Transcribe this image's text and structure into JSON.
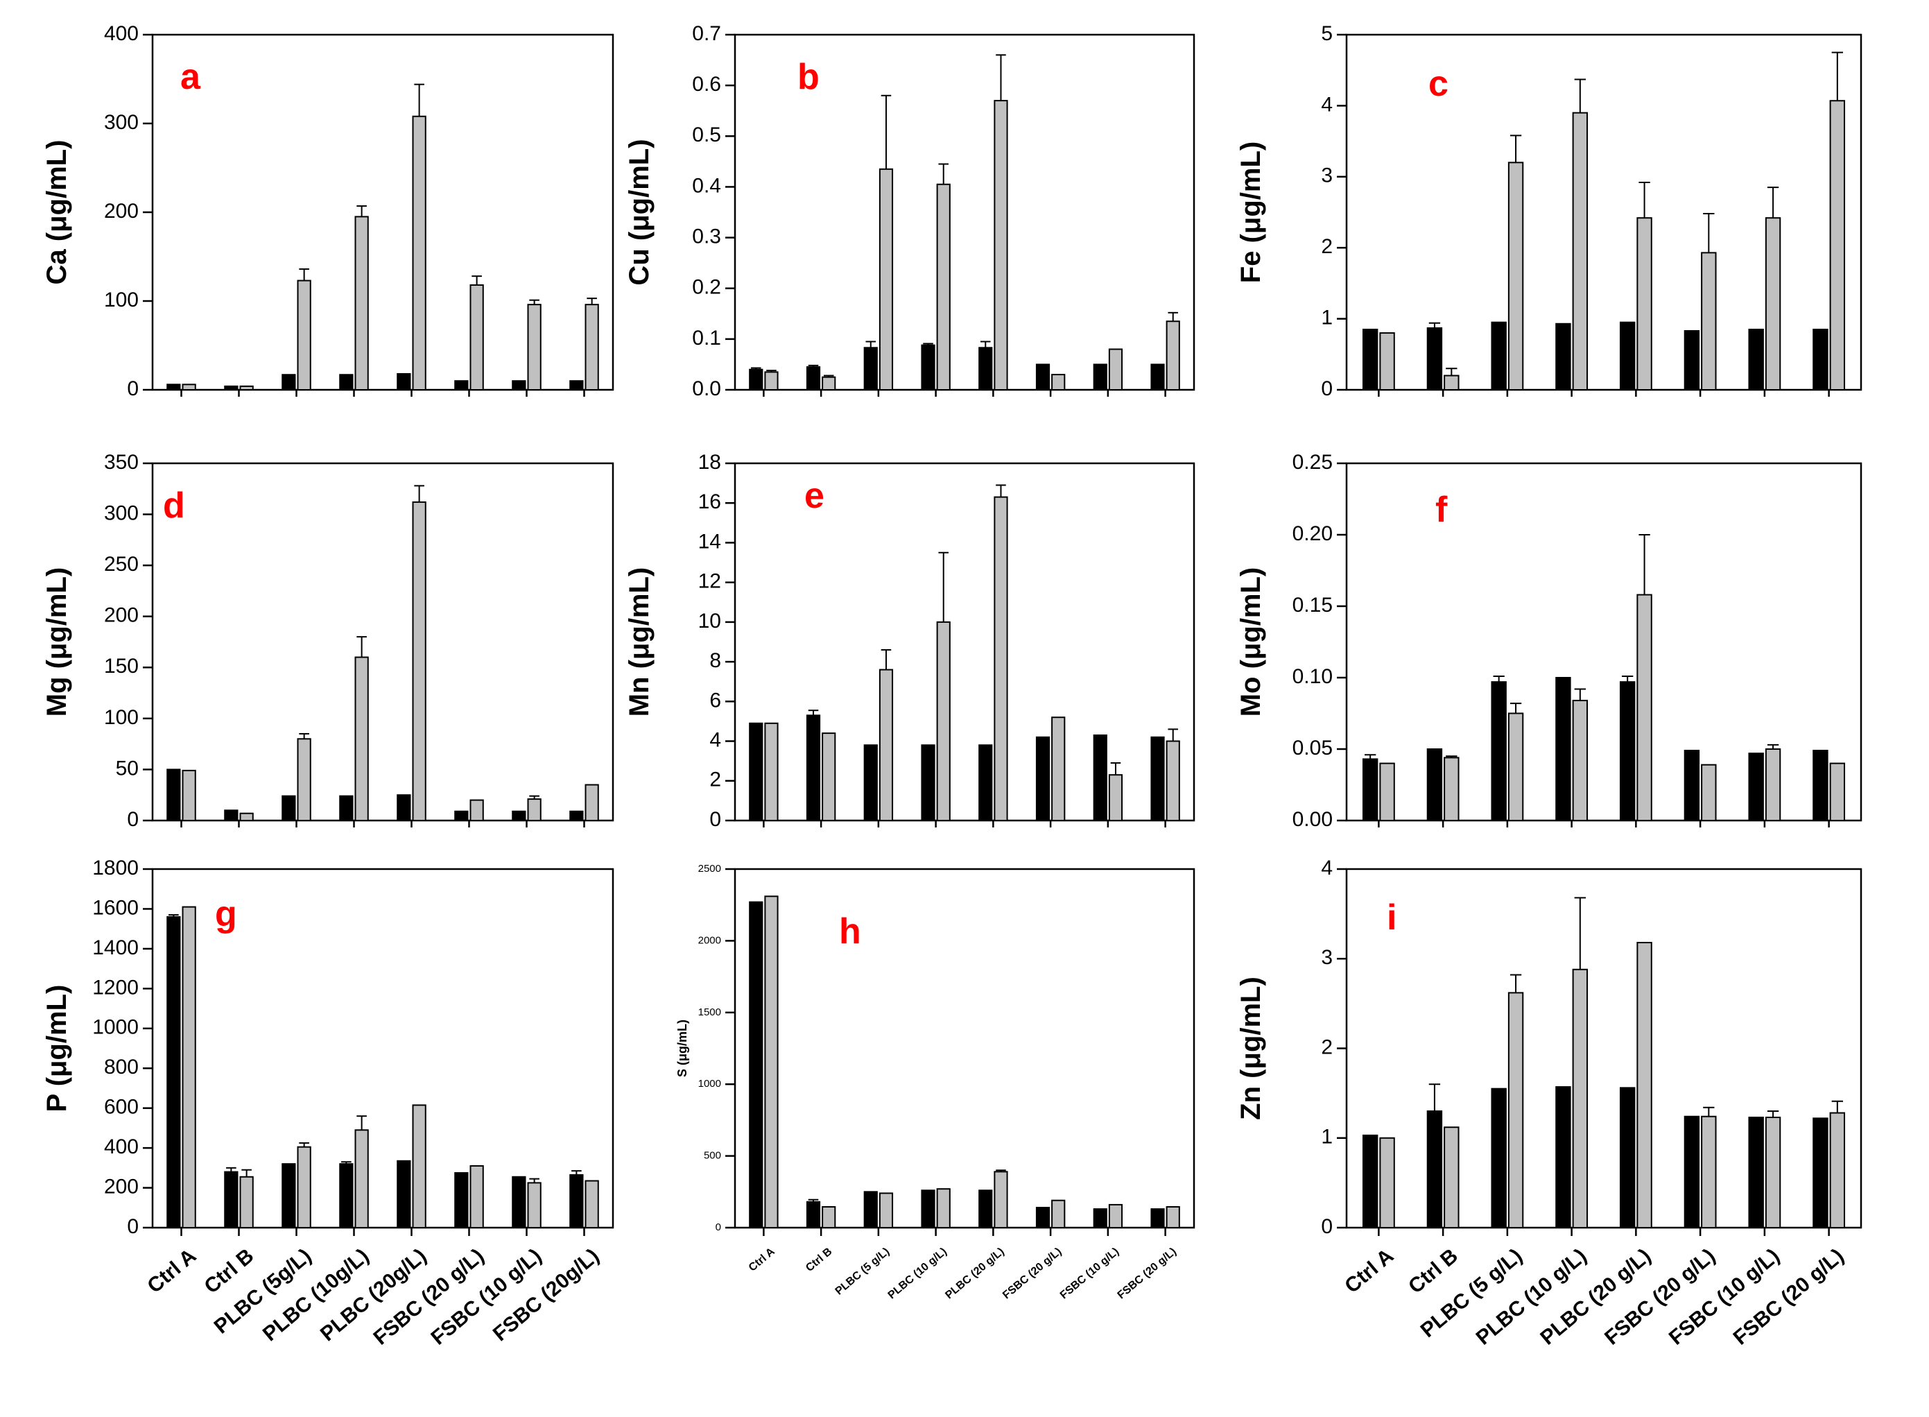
{
  "figure": {
    "series_colors": {
      "black": "#000000",
      "gray": "#c0c0c0"
    },
    "letter_color": "#ff0000"
  },
  "chart_data": [
    {
      "type": "bar",
      "panel": "a",
      "ylabel_el": "Ca",
      "ylabel_unit": "(μg/mL)",
      "ylim": [
        0,
        400
      ],
      "yticks": [
        "0",
        "100",
        "200",
        "300",
        "400"
      ],
      "categories": [
        "Ctrl A",
        "Ctrl B",
        "PLBC (5g/L)",
        "PLBC (10g/L)",
        "PLBC (20g/L)",
        "FSBC (20 g/L)",
        "FSBC (10 g/L)",
        "FSBC (20g/L)"
      ],
      "series": [
        {
          "name": "black",
          "values": [
            6,
            4,
            17,
            17,
            18,
            10,
            10,
            10
          ],
          "errors": [
            0,
            0,
            0,
            0,
            0,
            0,
            0,
            0
          ]
        },
        {
          "name": "gray",
          "values": [
            6,
            4,
            123,
            195,
            308,
            118,
            96,
            96
          ],
          "errors": [
            0,
            0,
            13,
            12,
            36,
            10,
            5,
            7
          ]
        }
      ]
    },
    {
      "type": "bar",
      "panel": "b",
      "ylabel_el": "Cu",
      "ylabel_unit": "(μg/mL)",
      "ylim": [
        0,
        0.7
      ],
      "yticks": [
        "0.0",
        "0.1",
        "0.2",
        "0.3",
        "0.4",
        "0.5",
        "0.6",
        "0.7"
      ],
      "categories": [
        "Ctrl A",
        "Ctrl B",
        "PLBC (5g/L)",
        "PLBC (10g/L)",
        "PLBC (20g/L)",
        "FSBC (20 g/L)",
        "FSBC (10 g/L)",
        "FSBC (20g/L)"
      ],
      "series": [
        {
          "name": "black",
          "values": [
            0.04,
            0.045,
            0.083,
            0.088,
            0.083,
            0.05,
            0.05,
            0.05
          ],
          "errors": [
            0.003,
            0.003,
            0.012,
            0.003,
            0.012,
            0,
            0,
            0
          ]
        },
        {
          "name": "gray",
          "values": [
            0.035,
            0.025,
            0.435,
            0.405,
            0.57,
            0.03,
            0.08,
            0.135
          ],
          "errors": [
            0.003,
            0.003,
            0.145,
            0.04,
            0.09,
            0,
            0,
            0.017
          ]
        }
      ]
    },
    {
      "type": "bar",
      "panel": "c",
      "ylabel_el": "Fe",
      "ylabel_unit": "(μg/mL)",
      "ylim": [
        0,
        5
      ],
      "yticks": [
        "0",
        "1",
        "2",
        "3",
        "4",
        "5"
      ],
      "categories": [
        "Ctrl A",
        "Ctrl B",
        "PLBC (5g/L)",
        "PLBC (10g/L)",
        "PLBC (20g/L)",
        "FSBC (20 g/L)",
        "FSBC (10 g/L)",
        "FSBC (20g/L)"
      ],
      "series": [
        {
          "name": "black",
          "values": [
            0.85,
            0.87,
            0.95,
            0.93,
            0.95,
            0.83,
            0.85,
            0.85
          ],
          "errors": [
            0,
            0.07,
            0,
            0,
            0,
            0,
            0,
            0
          ]
        },
        {
          "name": "gray",
          "values": [
            0.8,
            0.2,
            3.2,
            3.9,
            2.42,
            1.93,
            2.42,
            4.07
          ],
          "errors": [
            0,
            0.1,
            0.38,
            0.47,
            0.5,
            0.55,
            0.43,
            0.68
          ]
        }
      ]
    },
    {
      "type": "bar",
      "panel": "d",
      "ylabel_el": "Mg",
      "ylabel_unit": "(μg/mL)",
      "ylim": [
        0,
        350
      ],
      "yticks": [
        "0",
        "50",
        "100",
        "150",
        "200",
        "250",
        "300",
        "350"
      ],
      "categories": [
        "Ctrl A",
        "Ctrl B",
        "PLBC (5g/L)",
        "PLBC (10g/L)",
        "PLBC (20g/L)",
        "FSBC (20 g/L)",
        "FSBC (10 g/L)",
        "FSBC (20g/L)"
      ],
      "series": [
        {
          "name": "black",
          "values": [
            50,
            10,
            24,
            24,
            25,
            9,
            9,
            9
          ],
          "errors": [
            0,
            0,
            0,
            0,
            0,
            0,
            0,
            0
          ]
        },
        {
          "name": "gray",
          "values": [
            49,
            7,
            80,
            160,
            312,
            20,
            21,
            35
          ],
          "errors": [
            0,
            0,
            5,
            20,
            16,
            0,
            3,
            0
          ]
        }
      ]
    },
    {
      "type": "bar",
      "panel": "e",
      "ylabel_el": "Mn",
      "ylabel_unit": "(μg/mL)",
      "ylim": [
        0,
        18
      ],
      "yticks": [
        "0",
        "2",
        "4",
        "6",
        "8",
        "10",
        "12",
        "14",
        "16",
        "18"
      ],
      "categories": [
        "Ctrl A",
        "Ctrl B",
        "PLBC (5g/L)",
        "PLBC (10g/L)",
        "PLBC (20g/L)",
        "FSBC (20 g/L)",
        "FSBC (10 g/L)",
        "FSBC (20g/L)"
      ],
      "series": [
        {
          "name": "black",
          "values": [
            4.9,
            5.3,
            3.8,
            3.8,
            3.8,
            4.2,
            4.3,
            4.2
          ],
          "errors": [
            0,
            0.25,
            0,
            0,
            0,
            0,
            0,
            0
          ]
        },
        {
          "name": "gray",
          "values": [
            4.9,
            4.4,
            7.6,
            10,
            16.3,
            5.2,
            2.3,
            4
          ],
          "errors": [
            0,
            0,
            1,
            3.5,
            0.6,
            0,
            0.6,
            0.6
          ]
        }
      ]
    },
    {
      "type": "bar",
      "panel": "f",
      "ylabel_el": "Mo",
      "ylabel_unit": "(μg/mL)",
      "ylim": [
        0,
        0.25
      ],
      "yticks": [
        "0.00",
        "0.05",
        "0.10",
        "0.15",
        "0.20",
        "0.25"
      ],
      "categories": [
        "Ctrl A",
        "Ctrl B",
        "PLBC (5g/L)",
        "PLBC (10g/L)",
        "PLBC (20g/L)",
        "FSBC (20 g/L)",
        "FSBC (10 g/L)",
        "FSBC (20g/L)"
      ],
      "series": [
        {
          "name": "black",
          "values": [
            0.043,
            0.05,
            0.097,
            0.1,
            0.097,
            0.049,
            0.047,
            0.049
          ],
          "errors": [
            0.003,
            0,
            0.004,
            0,
            0.004,
            0,
            0,
            0
          ]
        },
        {
          "name": "gray",
          "values": [
            0.04,
            0.044,
            0.075,
            0.084,
            0.158,
            0.039,
            0.05,
            0.04
          ],
          "errors": [
            0,
            0.001,
            0.007,
            0.008,
            0.042,
            0,
            0.003,
            0
          ]
        }
      ]
    },
    {
      "type": "bar",
      "panel": "g",
      "ylabel_el": "P",
      "ylabel_unit": "(μg/mL)",
      "ylim": [
        0,
        1800
      ],
      "yticks": [
        "0",
        "200",
        "400",
        "600",
        "800",
        "1000",
        "1200",
        "1400",
        "1600",
        "1800"
      ],
      "categories": [
        "Ctrl A",
        "Ctrl B",
        "PLBC (5g/L)",
        "PLBC (10g/L)",
        "PLBC (20g/L)",
        "FSBC (20 g/L)",
        "FSBC (10 g/L)",
        "FSBC (20g/L)"
      ],
      "series": [
        {
          "name": "black",
          "values": [
            1560,
            280,
            320,
            320,
            335,
            275,
            255,
            265
          ],
          "errors": [
            10,
            20,
            0,
            10,
            0,
            0,
            0,
            20
          ]
        },
        {
          "name": "gray",
          "values": [
            1610,
            255,
            405,
            490,
            615,
            310,
            225,
            235
          ],
          "errors": [
            0,
            35,
            20,
            70,
            0,
            0,
            20,
            0
          ]
        }
      ]
    },
    {
      "type": "bar",
      "panel": "h",
      "ylabel_el": "S",
      "ylabel_unit": "(μg/mL)",
      "small_labels": true,
      "ylim": [
        0,
        2500
      ],
      "yticks": [
        "0",
        "500",
        "1000",
        "1500",
        "2000",
        "2500"
      ],
      "categories": [
        "Ctrl A",
        "Ctrl B",
        "PLBC (5 g/L)",
        "PLBC (10 g/L)",
        "PLBC (20 g/L)",
        "FSBC (20 g/L)",
        "FSBC (10 g/L)",
        "FSBC (20 g/L)"
      ],
      "series": [
        {
          "name": "black",
          "values": [
            2270,
            180,
            250,
            260,
            260,
            140,
            130,
            130
          ],
          "errors": [
            0,
            15,
            0,
            0,
            0,
            0,
            0,
            0
          ]
        },
        {
          "name": "gray",
          "values": [
            2310,
            145,
            240,
            270,
            390,
            190,
            160,
            145
          ],
          "errors": [
            0,
            0,
            0,
            0,
            10,
            0,
            0,
            0
          ]
        }
      ]
    },
    {
      "type": "bar",
      "panel": "i",
      "ylabel_el": "Zn",
      "ylabel_unit": "(μg/mL)",
      "ylim": [
        0,
        4
      ],
      "yticks": [
        "0",
        "1",
        "2",
        "3",
        "4"
      ],
      "categories": [
        "Ctrl A",
        "Ctrl B",
        "PLBC (5 g/L)",
        "PLBC (10 g/L)",
        "PLBC (20 g/L)",
        "FSBC (20 g/L)",
        "FSBC (10 g/L)",
        "FSBC (20 g/L)"
      ],
      "series": [
        {
          "name": "black",
          "values": [
            1.03,
            1.3,
            1.55,
            1.57,
            1.56,
            1.24,
            1.23,
            1.22
          ],
          "errors": [
            0,
            0.3,
            0,
            0,
            0,
            0,
            0,
            0
          ]
        },
        {
          "name": "gray",
          "values": [
            1,
            1.12,
            2.62,
            2.88,
            3.18,
            1.24,
            1.23,
            1.28
          ],
          "errors": [
            0,
            0,
            0.2,
            0.8,
            0,
            0.1,
            0.07,
            0.13
          ]
        }
      ]
    }
  ]
}
